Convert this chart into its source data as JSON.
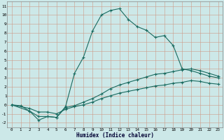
{
  "xlabel": "Humidex (Indice chaleur)",
  "bg_color": "#cce8e8",
  "grid_color_major": "#cc9999",
  "grid_color_minor": "#ddbbbb",
  "line_color": "#1a6b60",
  "xlim": [
    -0.5,
    23.5
  ],
  "ylim": [
    -2.5,
    11.5
  ],
  "xticks": [
    0,
    1,
    2,
    3,
    4,
    5,
    6,
    7,
    8,
    9,
    10,
    11,
    12,
    13,
    14,
    15,
    16,
    17,
    18,
    19,
    20,
    21,
    22,
    23
  ],
  "yticks": [
    -2,
    -1,
    0,
    1,
    2,
    3,
    4,
    5,
    6,
    7,
    8,
    9,
    10,
    11
  ],
  "line1_x": [
    0,
    1,
    2,
    3,
    4,
    5,
    6,
    7,
    8,
    9,
    10,
    11,
    12,
    13,
    14,
    15,
    16,
    17,
    18,
    19,
    20,
    21,
    22,
    23
  ],
  "line1_y": [
    0.0,
    -0.1,
    -0.7,
    -1.7,
    -1.3,
    -1.4,
    -0.2,
    3.5,
    5.3,
    8.2,
    10.0,
    10.5,
    10.7,
    9.5,
    8.7,
    8.3,
    7.5,
    7.7,
    6.6,
    4.0,
    3.8,
    3.5,
    3.2,
    3.0
  ],
  "line2_x": [
    0,
    2,
    3,
    4,
    5,
    6,
    7,
    8,
    9,
    10,
    11,
    12,
    13,
    14,
    15,
    16,
    17,
    18,
    19,
    20,
    21,
    22,
    23
  ],
  "line2_y": [
    0.0,
    -0.7,
    -1.3,
    -1.3,
    -1.4,
    -0.3,
    -0.1,
    0.3,
    0.7,
    1.2,
    1.8,
    2.2,
    2.5,
    2.8,
    3.1,
    3.4,
    3.5,
    3.7,
    3.9,
    4.0,
    3.8,
    3.5,
    3.2
  ],
  "line3_x": [
    0,
    2,
    3,
    4,
    5,
    6,
    7,
    8,
    9,
    10,
    11,
    12,
    13,
    14,
    15,
    16,
    17,
    18,
    19,
    20,
    21,
    22,
    23
  ],
  "line3_y": [
    0.0,
    -0.4,
    -0.8,
    -0.8,
    -1.0,
    -0.5,
    -0.2,
    0.0,
    0.3,
    0.7,
    1.0,
    1.3,
    1.5,
    1.7,
    1.9,
    2.1,
    2.2,
    2.4,
    2.5,
    2.7,
    2.6,
    2.4,
    2.3
  ]
}
